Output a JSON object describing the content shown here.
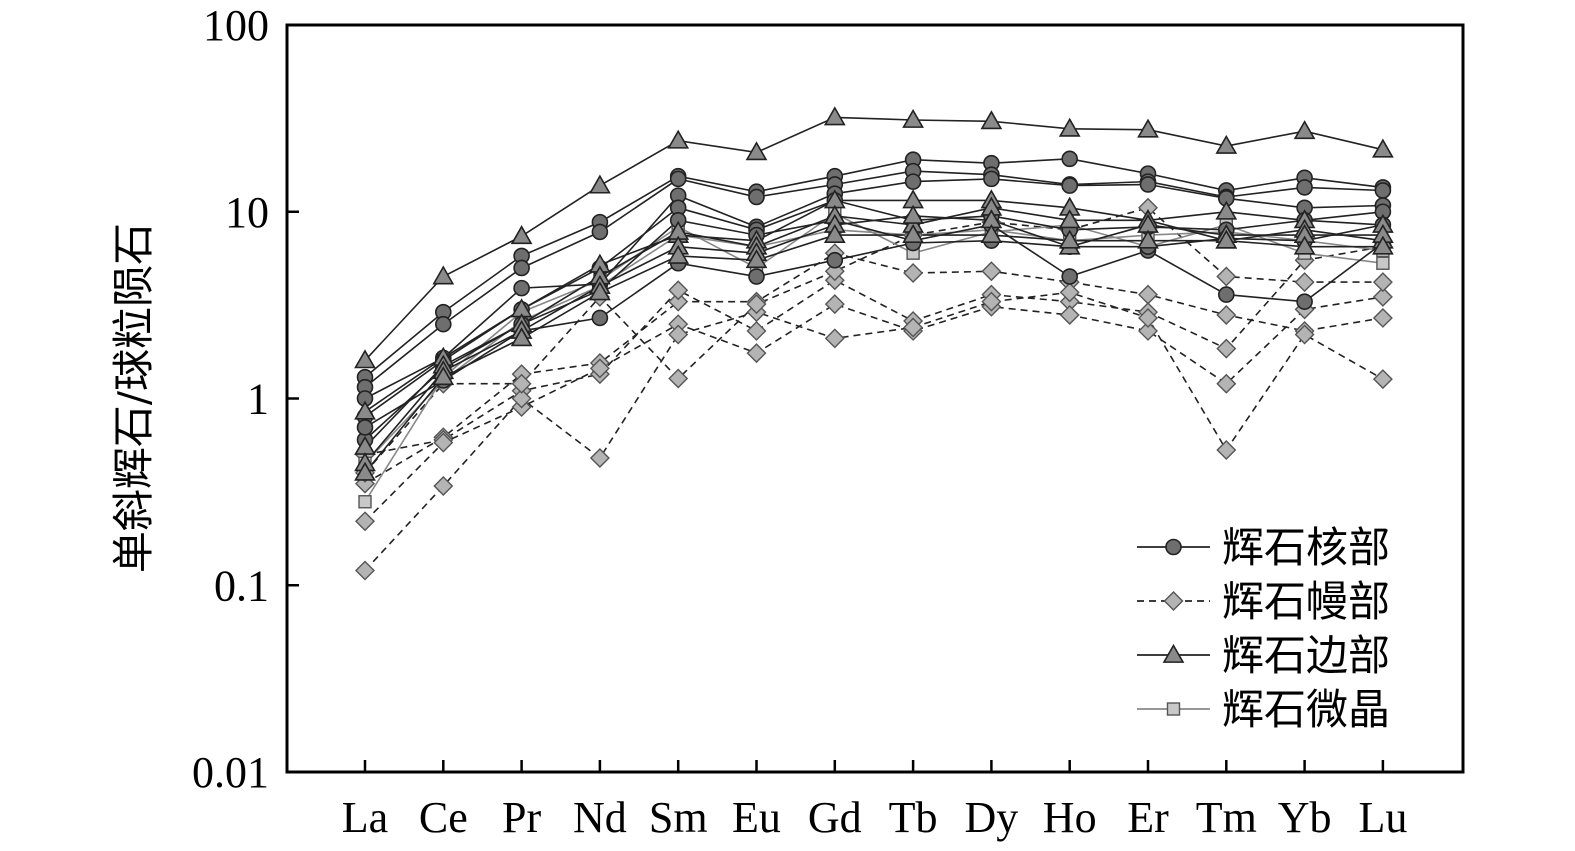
{
  "chart_data": {
    "type": "line",
    "y_scale": "log",
    "ylim": [
      0.01,
      100
    ],
    "ylabel": "单斜辉石/球粒陨石",
    "xlabel": "",
    "categories": [
      "La",
      "Ce",
      "Pr",
      "Nd",
      "Sm",
      "Eu",
      "Gd",
      "Tb",
      "Dy",
      "Ho",
      "Er",
      "Tm",
      "Yb",
      "Lu"
    ],
    "y_ticks": [
      {
        "value": 0.01,
        "label": "0.01"
      },
      {
        "value": 0.1,
        "label": "0.1"
      },
      {
        "value": 1,
        "label": "1"
      },
      {
        "value": 10,
        "label": "10"
      },
      {
        "value": 100,
        "label": "100"
      }
    ],
    "grid": false,
    "legend_position": "bottom-right",
    "legend": [
      {
        "group": "core",
        "label": "辉石核部"
      },
      {
        "group": "mantle",
        "label": "辉石幔部"
      },
      {
        "group": "rim",
        "label": "辉石边部"
      },
      {
        "group": "micro",
        "label": "辉石微晶"
      }
    ],
    "styles": {
      "core": {
        "marker": "circle",
        "dash": "solid",
        "fill": "#6e6e6e",
        "line": "#222222"
      },
      "mantle": {
        "marker": "diamond",
        "dash": "dashed",
        "fill": "#b4b4b4",
        "line": "#222222"
      },
      "rim": {
        "marker": "triangle",
        "dash": "solid",
        "fill": "#8a8a8a",
        "line": "#222222"
      },
      "micro": {
        "marker": "square",
        "dash": "solid",
        "fill": "#c8c8c8",
        "line": "#888888"
      }
    },
    "series": [
      {
        "group": "core",
        "values": [
          1.3,
          2.9,
          5.8,
          8.8,
          15.5,
          12.8,
          15.5,
          19.0,
          18.2,
          19.2,
          16.0,
          13.0,
          15.2,
          13.5
        ]
      },
      {
        "group": "core",
        "values": [
          1.15,
          2.5,
          5.0,
          7.8,
          15.0,
          12.0,
          14.0,
          16.5,
          15.8,
          14.0,
          14.5,
          12.0,
          13.5,
          13.0
        ]
      },
      {
        "group": "core",
        "values": [
          1.0,
          1.65,
          3.9,
          4.1,
          12.2,
          8.3,
          12.5,
          14.5,
          15.0,
          13.8,
          14.0,
          11.8,
          10.5,
          10.8
        ]
      },
      {
        "group": "core",
        "values": [
          0.8,
          1.6,
          3.0,
          5.0,
          10.5,
          8.0,
          11.5,
          9.0,
          9.5,
          8.0,
          8.3,
          8.0,
          9.0,
          10.0
        ]
      },
      {
        "group": "core",
        "values": [
          0.6,
          1.45,
          2.5,
          3.8,
          9.0,
          7.5,
          9.0,
          7.0,
          8.5,
          4.5,
          6.2,
          3.6,
          3.3,
          6.8
        ]
      },
      {
        "group": "core",
        "values": [
          0.7,
          1.25,
          2.3,
          2.7,
          5.3,
          4.5,
          5.5,
          6.8,
          7.0,
          6.5,
          6.5,
          7.2,
          7.0,
          8.5
        ]
      },
      {
        "group": "mantle",
        "values": [
          0.35,
          0.62,
          1.35,
          1.55,
          3.3,
          3.3,
          6.0,
          4.7,
          4.8,
          4.2,
          3.6,
          2.8,
          2.3,
          2.7
        ]
      },
      {
        "group": "mantle",
        "values": [
          0.5,
          0.6,
          1.1,
          1.35,
          3.8,
          2.3,
          4.3,
          2.6,
          3.6,
          3.3,
          2.9,
          1.85,
          5.5,
          6.5
        ]
      },
      {
        "group": "mantle",
        "values": [
          0.22,
          0.58,
          0.9,
          1.45,
          2.5,
          1.75,
          3.2,
          2.3,
          3.1,
          2.8,
          2.3,
          1.2,
          3.0,
          3.5
        ]
      },
      {
        "group": "mantle",
        "values": [
          0.12,
          0.34,
          1.0,
          0.48,
          2.2,
          2.9,
          2.1,
          2.4,
          3.3,
          3.7,
          2.7,
          0.53,
          2.2,
          1.27
        ]
      },
      {
        "group": "mantle",
        "values": [
          0.4,
          1.2,
          1.2,
          3.5,
          1.28,
          3.2,
          4.8,
          7.5,
          8.8,
          8.0,
          10.5,
          4.5,
          4.2,
          4.2
        ]
      },
      {
        "group": "rim",
        "values": [
          1.6,
          4.5,
          7.4,
          13.8,
          24.0,
          20.8,
          32.0,
          31.0,
          30.5,
          27.8,
          27.5,
          22.5,
          27.0,
          21.5
        ]
      },
      {
        "group": "rim",
        "values": [
          0.85,
          1.65,
          3.0,
          5.2,
          7.5,
          7.0,
          11.5,
          11.5,
          11.5,
          10.5,
          9.0,
          10.0,
          9.0,
          8.5
        ]
      },
      {
        "group": "rim",
        "values": [
          0.55,
          1.5,
          2.5,
          4.5,
          7.8,
          6.5,
          9.5,
          8.5,
          10.5,
          9.0,
          9.0,
          7.0,
          8.0,
          7.0
        ]
      },
      {
        "group": "rim",
        "values": [
          0.45,
          1.4,
          2.3,
          4.0,
          6.5,
          6.0,
          8.5,
          9.5,
          9.0,
          6.5,
          8.5,
          7.5,
          7.5,
          7.5
        ]
      },
      {
        "group": "rim",
        "values": [
          0.4,
          1.3,
          2.1,
          3.7,
          5.8,
          5.5,
          7.5,
          7.5,
          7.5,
          7.0,
          7.0,
          7.0,
          6.5,
          6.5
        ]
      },
      {
        "group": "micro",
        "values": [
          0.28,
          1.3,
          2.9,
          4.3,
          8.3,
          5.0,
          9.8,
          6.0,
          7.8,
          8.5,
          6.5,
          8.5,
          6.0,
          5.3
        ]
      },
      {
        "group": "micro",
        "values": [
          0.45,
          1.25,
          2.6,
          4.0,
          7.5,
          6.5,
          8.0,
          7.5,
          8.0,
          7.0,
          7.5,
          7.8,
          7.0,
          6.2
        ]
      }
    ]
  }
}
